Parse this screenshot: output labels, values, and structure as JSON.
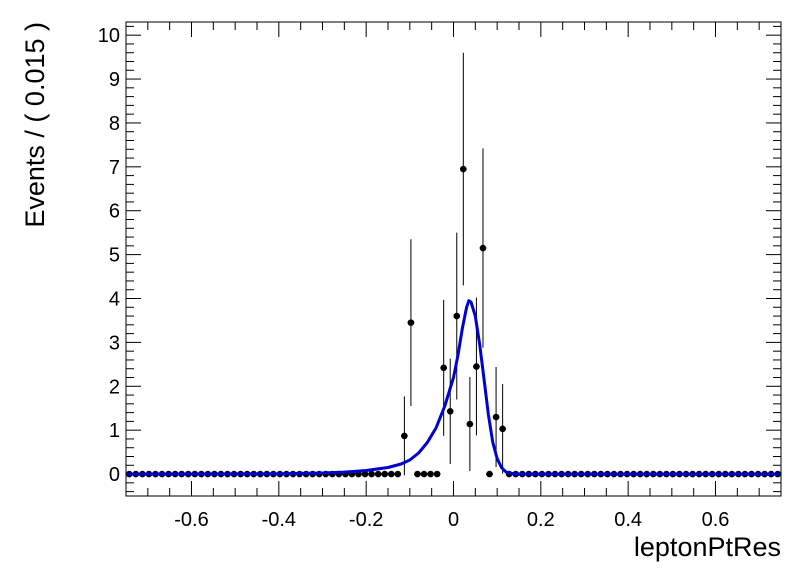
{
  "chart_data": {
    "type": "scatter",
    "xlabel": "leptonPtRes",
    "ylabel": "Events / ( 0.015 )",
    "xlim": [
      -0.75,
      0.75
    ],
    "ylim": [
      -0.5,
      10.3
    ],
    "xticks": [
      "-0.6",
      "-0.4",
      "-0.2",
      "0",
      "0.2",
      "0.4",
      "0.6"
    ],
    "xtick_values": [
      -0.6,
      -0.4,
      -0.2,
      0,
      0.2,
      0.4,
      0.6
    ],
    "yticks": [
      "0",
      "1",
      "2",
      "3",
      "4",
      "5",
      "6",
      "7",
      "8",
      "9",
      "10"
    ],
    "yaxis_color": "#000000",
    "data_color": "#000000",
    "fit_color": "#0000d0",
    "bin_width": 0.015,
    "data_points": [
      {
        "x": -0.1125,
        "y": 0.87,
        "err": 0.9
      },
      {
        "x": -0.0975,
        "y": 3.45,
        "err": 1.9
      },
      {
        "x": -0.0825,
        "y": 0,
        "err": 0
      },
      {
        "x": -0.0675,
        "y": 0,
        "err": 0
      },
      {
        "x": -0.0525,
        "y": 0,
        "err": 0
      },
      {
        "x": -0.0375,
        "y": 0,
        "err": 0
      },
      {
        "x": -0.0225,
        "y": 2.42,
        "err": 1.55
      },
      {
        "x": -0.0075,
        "y": 1.43,
        "err": 1.2
      },
      {
        "x": 0.0075,
        "y": 3.6,
        "err": 1.9
      },
      {
        "x": 0.0225,
        "y": 6.95,
        "err": 2.65
      },
      {
        "x": 0.0375,
        "y": 1.14,
        "err": 1.07
      },
      {
        "x": 0.0525,
        "y": 2.45,
        "err": 1.57
      },
      {
        "x": 0.0675,
        "y": 5.15,
        "err": 2.27
      },
      {
        "x": 0.0825,
        "y": 0,
        "err": 0
      },
      {
        "x": 0.0975,
        "y": 1.3,
        "err": 1.14
      },
      {
        "x": 0.1125,
        "y": 1.03,
        "err": 1.02
      }
    ],
    "fit_curve": [
      [
        -0.75,
        0
      ],
      [
        -0.5,
        0.003
      ],
      [
        -0.4,
        0.008
      ],
      [
        -0.3,
        0.025
      ],
      [
        -0.25,
        0.045
      ],
      [
        -0.2,
        0.08
      ],
      [
        -0.15,
        0.15
      ],
      [
        -0.12,
        0.23
      ],
      [
        -0.1,
        0.32
      ],
      [
        -0.08,
        0.48
      ],
      [
        -0.06,
        0.72
      ],
      [
        -0.04,
        1.05
      ],
      [
        -0.02,
        1.55
      ],
      [
        0,
        2.2
      ],
      [
        0.01,
        2.7
      ],
      [
        0.02,
        3.3
      ],
      [
        0.03,
        3.8
      ],
      [
        0.035,
        3.95
      ],
      [
        0.04,
        3.92
      ],
      [
        0.05,
        3.6
      ],
      [
        0.06,
        2.95
      ],
      [
        0.07,
        2.15
      ],
      [
        0.08,
        1.35
      ],
      [
        0.09,
        0.72
      ],
      [
        0.1,
        0.35
      ],
      [
        0.11,
        0.15
      ],
      [
        0.12,
        0.05
      ],
      [
        0.13,
        0.015
      ],
      [
        0.15,
        0
      ],
      [
        0.75,
        0
      ]
    ]
  }
}
